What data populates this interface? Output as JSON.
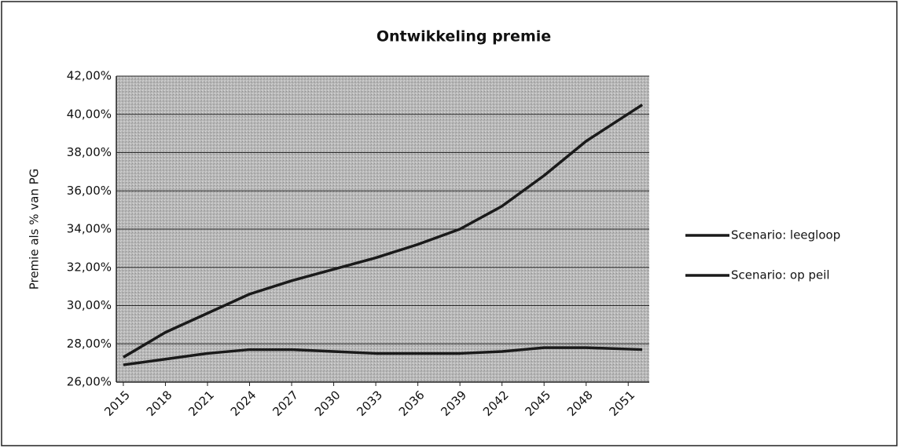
{
  "chart_data": {
    "type": "line",
    "title": "Ontwikkeling premie",
    "y_label": "Premie als % van PG",
    "x": [
      2015,
      2018,
      2021,
      2024,
      2027,
      2030,
      2033,
      2036,
      2039,
      2042,
      2045,
      2048,
      2052
    ],
    "xlim": [
      2014.5,
      2052.5
    ],
    "xticks": [
      2015,
      2018,
      2021,
      2024,
      2027,
      2030,
      2033,
      2036,
      2039,
      2042,
      2045,
      2048,
      2051
    ],
    "ylim": [
      26,
      42
    ],
    "yticks": [
      {
        "value": 26,
        "label": "26,00%"
      },
      {
        "value": 28,
        "label": "28,00%"
      },
      {
        "value": 30,
        "label": "30,00%"
      },
      {
        "value": 32,
        "label": "32,00%"
      },
      {
        "value": 34,
        "label": "34,00%"
      },
      {
        "value": 36,
        "label": "36,00%"
      },
      {
        "value": 38,
        "label": "38,00%"
      },
      {
        "value": 40,
        "label": "40,00%"
      },
      {
        "value": 42,
        "label": "42,00%"
      }
    ],
    "grid": true,
    "legend": "right",
    "series": [
      {
        "name": "Scenario: leegloop",
        "color": "#1a1a1a",
        "values": [
          27.3,
          28.6,
          29.6,
          30.6,
          31.3,
          31.9,
          32.5,
          33.2,
          34.0,
          35.2,
          36.8,
          38.6,
          40.5
        ]
      },
      {
        "name": "Scenario: op peil",
        "color": "#1a1a1a",
        "values": [
          26.9,
          27.2,
          27.5,
          27.7,
          27.7,
          27.6,
          27.5,
          27.5,
          27.5,
          27.6,
          27.8,
          27.8,
          27.7
        ]
      }
    ]
  }
}
